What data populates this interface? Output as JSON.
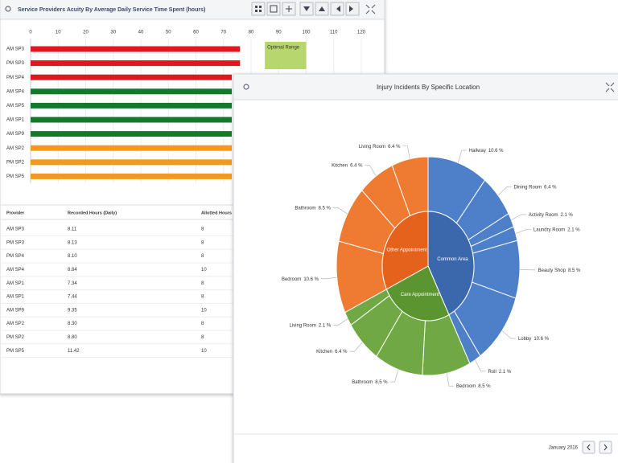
{
  "chart_data": [
    {
      "type": "bar",
      "orientation": "horizontal",
      "title": "Service Providers Acuity By Average Daily Service Time Spent (hours)",
      "categories": [
        "AM SP3",
        "PM SP3",
        "PM SP4",
        "AM SP4",
        "AM SP5",
        "AM SP1",
        "AM SP9",
        "AM SP2",
        "PM SP2",
        "PM SP5"
      ],
      "values": [
        76,
        76,
        73,
        73,
        73,
        73,
        73,
        73,
        73,
        73
      ],
      "colors": [
        "#e3161f",
        "#e3161f",
        "#e3161f",
        "#137a2c",
        "#137a2c",
        "#137a2c",
        "#137a2c",
        "#f39a1e",
        "#f39a1e",
        "#f39a1e"
      ],
      "xlim": [
        0,
        120
      ],
      "xticks": [
        0,
        10,
        20,
        30,
        40,
        50,
        60,
        70,
        80,
        90,
        100,
        110,
        120
      ],
      "grid": true,
      "annotation": {
        "label": "Optimal Range",
        "range": [
          85,
          100
        ],
        "color": "#b8d66e"
      }
    },
    {
      "type": "sunburst",
      "title": "Injury Incidents By Specific Location",
      "series": [
        {
          "name": "Common Area",
          "color": "#3b68ad",
          "outer_color": "#4d80c9",
          "categories": [
            "Hallway",
            "Dining Room",
            "Activity Room",
            "Laundry Room",
            "Beauty Shop",
            "Lobby",
            "Roll"
          ],
          "values": [
            10.6,
            6.4,
            2.1,
            2.1,
            8.5,
            10.6,
            2.1
          ],
          "value_labels": [
            "10.6 %",
            "6.4 %",
            "2.1 %",
            "2.1 %",
            "8.5 %",
            "10.6 %",
            "2.1 %"
          ]
        },
        {
          "name": "Care Appointment",
          "color": "#5b9530",
          "outer_color": "#70a844",
          "categories": [
            "Bedroom",
            "Bathroom",
            "Kitchen",
            "Living Room"
          ],
          "values": [
            8.5,
            8.5,
            6.4,
            2.1
          ],
          "value_labels": [
            "8.5 %",
            "8.5 %",
            "6.4 %",
            "2.1 %"
          ]
        },
        {
          "name": "Other Appointment",
          "color": "#e5621c",
          "outer_color": "#ef7a32",
          "categories": [
            "Bedroom",
            "Bathroom",
            "Kitchen",
            "Living Room"
          ],
          "values": [
            10.6,
            8.5,
            6.4,
            6.4
          ],
          "value_labels": [
            "10.6 %",
            "8.5 %",
            "6.4 %",
            "6.4 %"
          ]
        }
      ]
    }
  ],
  "table": {
    "columns": [
      "Provider",
      "Recorded Hours (Daily)",
      "Allotted Hours"
    ],
    "rows": [
      [
        "AM SP3",
        "8.11",
        "8"
      ],
      [
        "PM SP3",
        "8.13",
        "8"
      ],
      [
        "PM SP4",
        "8.10",
        "8"
      ],
      [
        "AM SP4",
        "8.84",
        "10"
      ],
      [
        "AM SP1",
        "7.34",
        "8"
      ],
      [
        "AM SP1",
        "7.44",
        "8"
      ],
      [
        "AM SP9",
        "9.35",
        "10"
      ],
      [
        "AM SP2",
        "8.30",
        "8"
      ],
      [
        "PM SP2",
        "8.80",
        "8"
      ],
      [
        "PM SP5",
        "11.42",
        "10"
      ]
    ]
  },
  "footer": {
    "period": "January 2016"
  }
}
